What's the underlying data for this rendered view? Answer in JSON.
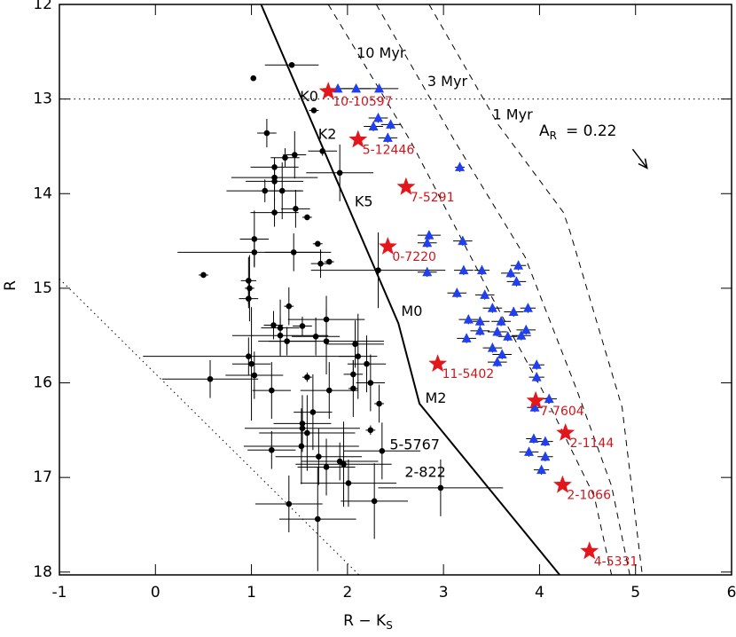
{
  "chart_data": {
    "type": "scatter",
    "xlabel": {
      "text": "R − K",
      "sub": "S"
    },
    "ylabel": "R",
    "xlim": [
      -1,
      6
    ],
    "ylim": [
      12,
      18.03
    ],
    "y_inverted": true,
    "xticks": [
      -1,
      0,
      1,
      2,
      3,
      4,
      5,
      6
    ],
    "yticks": [
      12,
      13,
      14,
      15,
      16,
      17,
      18
    ],
    "lines": [
      {
        "style": "solid",
        "x": [
          1.1,
          2.53,
          2.75,
          4.21
        ],
        "y": [
          12.0,
          15.37,
          16.22,
          18.03
        ]
      },
      {
        "style": "dashed",
        "x": [
          1.8,
          2.66,
          3.48,
          4.03,
          4.57,
          4.75
        ],
        "y": [
          12.0,
          13.45,
          15.05,
          16.08,
          17.2,
          18.03
        ]
      },
      {
        "style": "dashed",
        "x": [
          2.3,
          3.12,
          3.85,
          4.39,
          4.75,
          4.94
        ],
        "y": [
          12.0,
          13.45,
          14.67,
          16.08,
          17.09,
          18.03
        ]
      },
      {
        "style": "dashed",
        "x": [
          2.85,
          3.57,
          4.25,
          4.32,
          4.86,
          5.07
        ],
        "y": [
          12.0,
          13.27,
          14.2,
          14.41,
          16.26,
          18.03
        ]
      },
      {
        "style": "dotted",
        "x": [
          -1,
          2.12
        ],
        "y": [
          14.9,
          18.03
        ]
      },
      {
        "style": "dotted",
        "x": [
          -1,
          6
        ],
        "y": [
          13,
          13
        ]
      }
    ],
    "series": [
      {
        "marker": "circle",
        "color": "#000000",
        "x": [
          1.02,
          1.42,
          1.65,
          1.16,
          1.35,
          1.45,
          1.74,
          1.24,
          1.92,
          1.14,
          1.24,
          1.24,
          1.24,
          1.32,
          1.46,
          1.58,
          1.69,
          1.03,
          1.03,
          1.44,
          1.72,
          1.81,
          0.5,
          0.97,
          0.98,
          2.32,
          1.39,
          0.97,
          1.23,
          1.3,
          1.3,
          1.37,
          1.53,
          1.78,
          1.78,
          1.67,
          2.08,
          2.11,
          2.2,
          2.06,
          2.06,
          2.24,
          2.33,
          1.58,
          1.81,
          0.57,
          0.97,
          1.0,
          1.03,
          1.21,
          1.64,
          1.53,
          1.53,
          1.58,
          1.52,
          1.21,
          2.24,
          2.36,
          1.96,
          2.28,
          2.97,
          1.69,
          1.39,
          1.92,
          1.78,
          2.01,
          1.7
        ],
        "y": [
          12.78,
          12.64,
          13.12,
          13.36,
          13.62,
          13.59,
          13.55,
          13.72,
          13.78,
          13.97,
          13.83,
          13.87,
          14.2,
          13.97,
          14.16,
          14.25,
          14.53,
          14.48,
          14.62,
          14.62,
          14.74,
          14.72,
          14.86,
          14.92,
          15.0,
          14.81,
          15.19,
          15.11,
          15.39,
          15.42,
          15.5,
          15.56,
          15.4,
          15.33,
          15.56,
          15.51,
          15.59,
          15.72,
          15.8,
          15.91,
          16.06,
          16.0,
          16.22,
          15.94,
          16.08,
          15.96,
          15.72,
          15.8,
          15.92,
          16.08,
          16.31,
          16.43,
          16.48,
          16.53,
          16.67,
          16.71,
          16.5,
          16.72,
          16.86,
          17.25,
          17.11,
          17.44,
          17.28,
          16.83,
          16.89,
          17.06,
          16.78
        ],
        "xerr": [
          0,
          0.28,
          0.05,
          0.1,
          0.15,
          0.12,
          0.15,
          0.25,
          0.35,
          0.4,
          0.45,
          0.3,
          0.25,
          0.2,
          0.15,
          0.05,
          0.05,
          0.15,
          0.8,
          0.3,
          0.1,
          0.05,
          0.05,
          0.08,
          0.05,
          0.7,
          0.05,
          0.1,
          0.1,
          0.2,
          0.5,
          0.3,
          0.1,
          0.4,
          0.6,
          0.25,
          0.3,
          0.2,
          0.2,
          0.1,
          0.05,
          0.15,
          0.05,
          0.05,
          0.3,
          0.5,
          1.1,
          0.2,
          0.3,
          0.2,
          0.2,
          0.3,
          0.6,
          0.5,
          0.6,
          0.25,
          0.05,
          0.4,
          0.5,
          0.35,
          0.65,
          0.4,
          0.35,
          0.4,
          0.3,
          0.5,
          0.45
        ],
        "yerr": [
          0,
          0.03,
          0.02,
          0.15,
          0.1,
          0.25,
          0.05,
          0.1,
          0.3,
          0.12,
          0.15,
          0.2,
          0.15,
          0.3,
          0.2,
          0.03,
          0.03,
          0.3,
          0.15,
          0.2,
          0.15,
          0.03,
          0.03,
          0.25,
          0.35,
          0.4,
          0.2,
          0.1,
          0.15,
          0.3,
          0.2,
          0.15,
          0.1,
          0.25,
          0.35,
          0.2,
          0.25,
          0.45,
          0.3,
          0.15,
          0.3,
          0.3,
          0.2,
          0.05,
          0.3,
          0.2,
          0.2,
          0.6,
          0.25,
          0.3,
          0.4,
          0.3,
          0.2,
          0.4,
          0.4,
          0.2,
          0.05,
          0.3,
          0.45,
          0.4,
          0.3,
          0.55,
          0.3,
          0.2,
          0.3,
          0.25,
          0.3
        ]
      },
      {
        "marker": "triangle",
        "color": "#1f3ff0",
        "x": [
          1.9,
          2.09,
          2.33,
          2.27,
          2.32,
          2.45,
          2.42,
          3.17,
          2.85,
          2.83,
          3.2,
          2.83,
          3.21,
          3.14,
          3.4,
          3.43,
          3.7,
          3.78,
          3.76,
          3.88,
          3.26,
          3.38,
          3.51,
          3.6,
          3.73,
          3.86,
          3.24,
          3.38,
          3.56,
          3.67,
          3.81,
          3.51,
          3.61,
          3.56,
          3.97,
          3.97,
          4.1,
          3.95,
          3.94,
          3.89,
          4.06,
          4.06,
          4.02
        ],
        "y": [
          12.89,
          12.89,
          12.89,
          13.29,
          13.2,
          13.27,
          13.41,
          13.72,
          14.44,
          14.52,
          14.5,
          14.83,
          14.81,
          15.05,
          14.81,
          15.07,
          14.84,
          14.76,
          14.93,
          15.21,
          15.33,
          15.35,
          15.21,
          15.35,
          15.25,
          15.44,
          15.53,
          15.45,
          15.46,
          15.51,
          15.5,
          15.63,
          15.7,
          15.78,
          15.81,
          15.94,
          16.17,
          16.26,
          16.59,
          16.73,
          16.62,
          16.78,
          16.92
        ],
        "xerr": [
          0.15,
          0.15,
          0.2,
          0.1,
          0.1,
          0.1,
          0.1,
          0.05,
          0.12,
          0.1,
          0.1,
          0.1,
          0.1,
          0.1,
          0.08,
          0.1,
          0.1,
          0.08,
          0.1,
          0.08,
          0.1,
          0.1,
          0.1,
          0.1,
          0.1,
          0.1,
          0.1,
          0.1,
          0.1,
          0.1,
          0.1,
          0.1,
          0.1,
          0.1,
          0.08,
          0.08,
          0.08,
          0.08,
          0.08,
          0.1,
          0.08,
          0.08,
          0.08
        ],
        "yerr": [
          0.03,
          0.03,
          0.03,
          0.05,
          0.05,
          0.05,
          0.05,
          0.05,
          0.05,
          0.05,
          0.05,
          0.05,
          0.05,
          0.05,
          0.05,
          0.05,
          0.05,
          0.05,
          0.05,
          0.05,
          0.05,
          0.05,
          0.05,
          0.05,
          0.05,
          0.05,
          0.05,
          0.05,
          0.05,
          0.05,
          0.05,
          0.05,
          0.05,
          0.05,
          0.05,
          0.05,
          0.05,
          0.05,
          0.05,
          0.05,
          0.05,
          0.05,
          0.05
        ]
      },
      {
        "marker": "star",
        "color": "#e3161c",
        "label_color": "#d0161c",
        "x": [
          1.8,
          2.11,
          2.61,
          2.42,
          2.94,
          3.96,
          4.27,
          4.24,
          4.52
        ],
        "y": [
          12.92,
          13.43,
          13.93,
          14.56,
          15.8,
          16.19,
          16.53,
          17.08,
          17.78
        ],
        "labels": [
          "10-10597",
          "5-12446",
          "7-5291",
          "0-7220",
          "11-5402",
          "7-7604",
          "2-1144",
          "2-1066",
          "4-5331"
        ]
      }
    ],
    "annotations": [
      {
        "text": "K0",
        "x": 1.6,
        "y": 12.98
      },
      {
        "text": "K2",
        "x": 1.79,
        "y": 13.38
      },
      {
        "text": "K5",
        "x": 2.17,
        "y": 14.09
      },
      {
        "text": "M0",
        "x": 2.67,
        "y": 15.25
      },
      {
        "text": "M2",
        "x": 2.92,
        "y": 16.17
      },
      {
        "text": "10 Myr",
        "x": 2.35,
        "y": 12.52
      },
      {
        "text": "3 Myr",
        "x": 3.04,
        "y": 12.82
      },
      {
        "text": "1 Myr",
        "x": 3.72,
        "y": 13.17
      },
      {
        "text": "5-5767",
        "x": 2.7,
        "y": 16.66
      },
      {
        "text": "2-822",
        "x": 2.81,
        "y": 16.95
      }
    ],
    "extinction": {
      "text": "A",
      "sub": "R",
      "rest": "= 0.22",
      "label_x": 4.4,
      "label_y": 13.34,
      "x": [
        4.97,
        5.12
      ],
      "y": [
        13.53,
        13.73
      ]
    }
  }
}
